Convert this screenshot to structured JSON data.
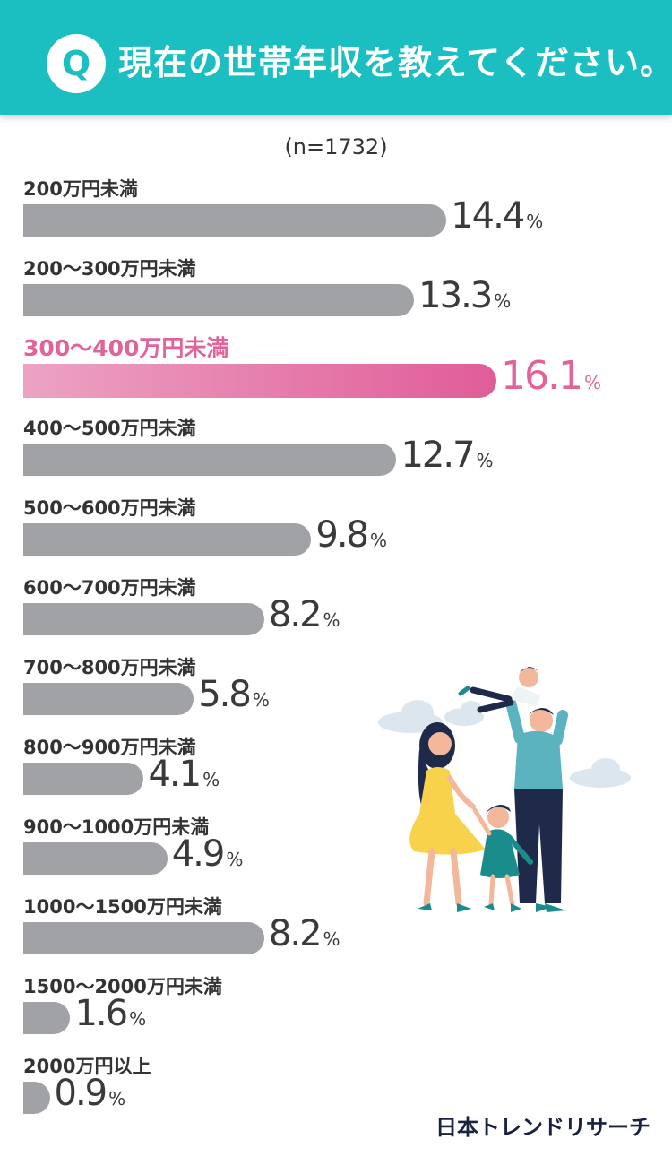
{
  "header": {
    "badge": "Q",
    "question": "現在の世帯年収を教えてください。"
  },
  "sample_note": "(n=1732)",
  "brand": "日本トレンドリサーチ",
  "colors": {
    "header": "#1bbfc2",
    "bar": "#a1a2a6",
    "highlight": "#e0639a"
  },
  "chart_data": {
    "type": "bar",
    "orientation": "horizontal",
    "unit": "%",
    "highlight_index": 2,
    "categories": [
      "200万円未満",
      "200～300万円未満",
      "300～400万円未満",
      "400～500万円未満",
      "500～600万円未満",
      "600～700万円未満",
      "700～800万円未満",
      "800～900万円未満",
      "900～1000万円未満",
      "1000～1500万円未満",
      "1500～2000万円未満",
      "2000万円以上"
    ],
    "values": [
      14.4,
      13.3,
      16.1,
      12.7,
      9.8,
      8.2,
      5.8,
      4.1,
      4.9,
      8.2,
      1.6,
      0.9
    ]
  }
}
